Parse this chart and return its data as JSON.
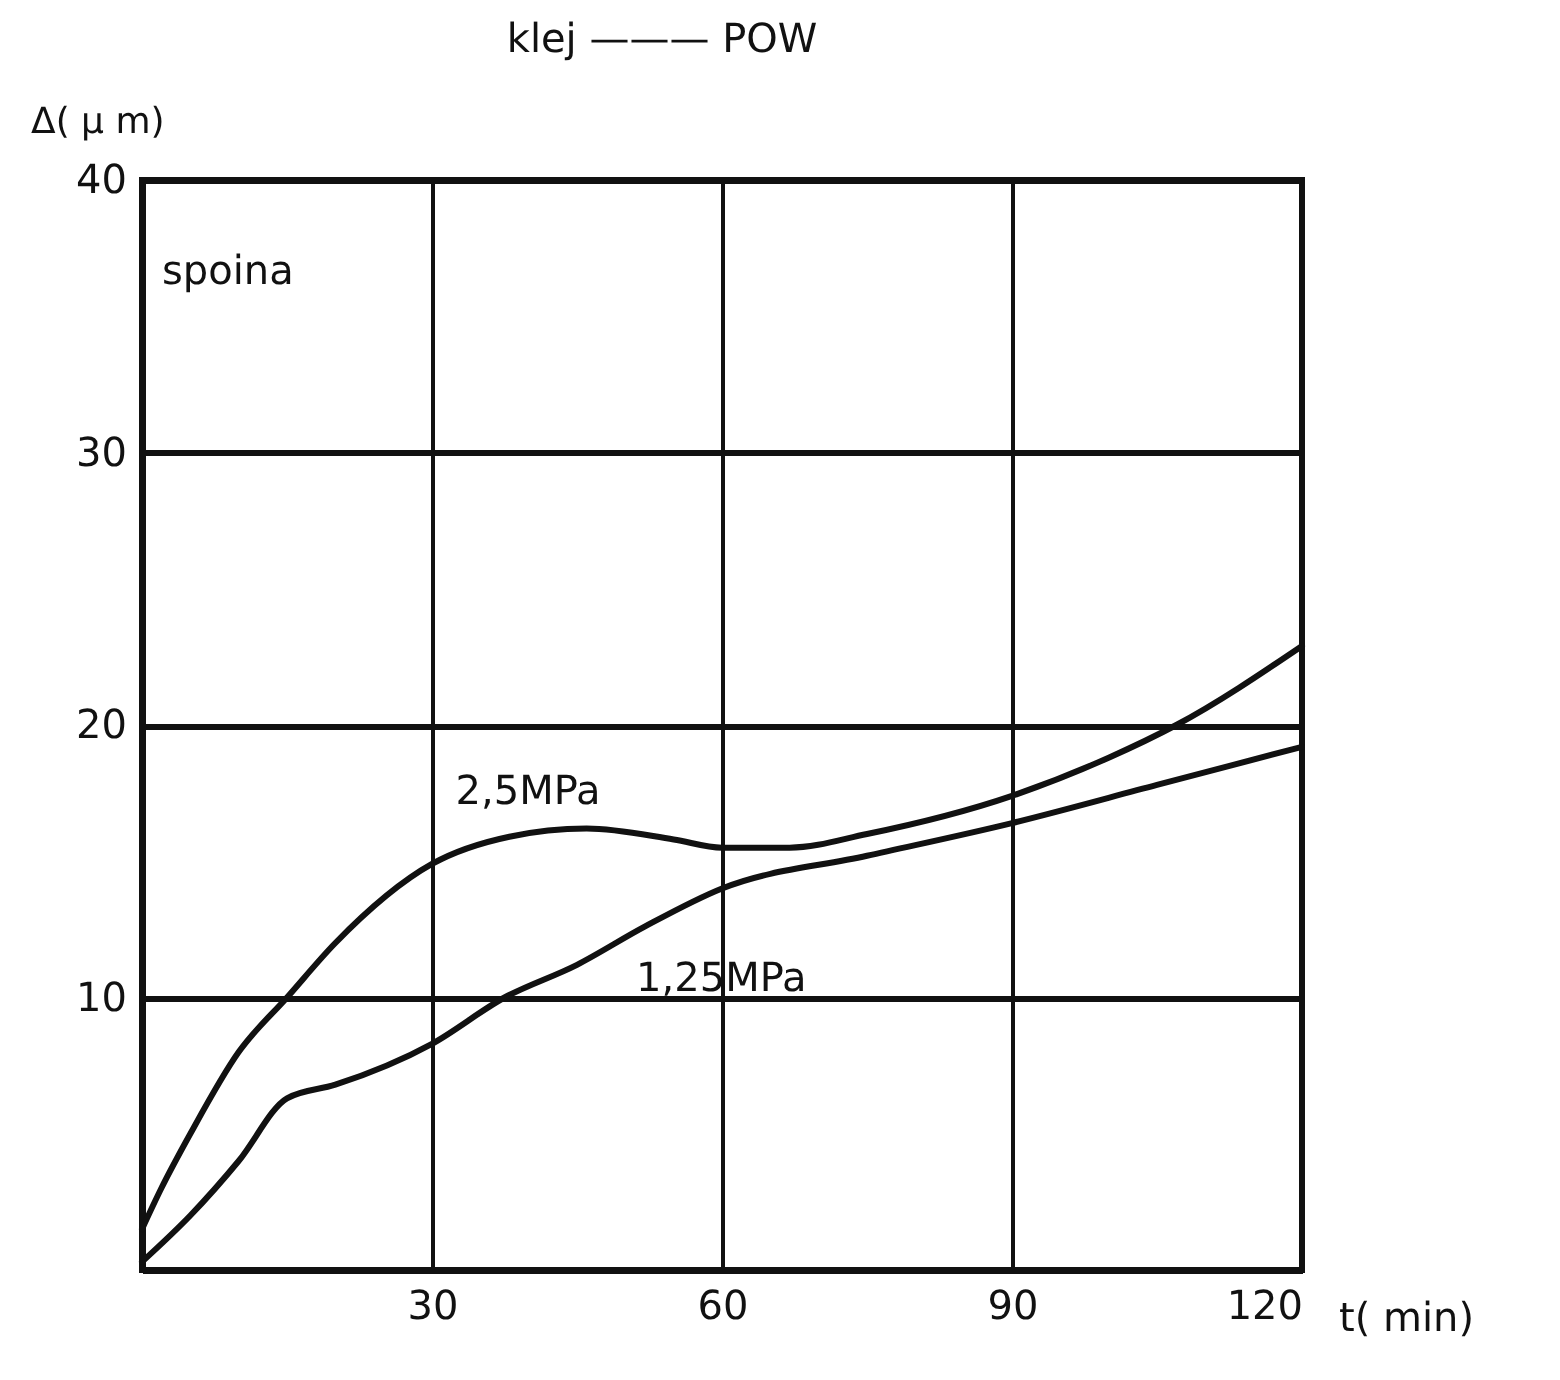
{
  "chart_data": {
    "type": "line",
    "title": "klej ——— POW",
    "xlabel": "t( min)",
    "ylabel": "Δ( μ m)",
    "annotations": [
      "spoina",
      {
        "text": "2,5MPa",
        "x": 30,
        "y": 14.9
      },
      {
        "text": "1,25MPa",
        "x": 50,
        "y": 12.3
      }
    ],
    "series": [
      {
        "color": "#111111",
        "x": [
          0,
          2,
          5,
          10,
          15,
          20,
          30,
          38,
          46,
          55,
          60,
          67,
          75,
          90,
          100,
          107,
          120
        ],
        "values": [
          1.5,
          3,
          5,
          8,
          10,
          12,
          14.9,
          15.9,
          16.2,
          15.8,
          15.5,
          15.5,
          16.0,
          17.4,
          18.8,
          20,
          22.9
        ]
      },
      {
        "color": "#111111",
        "x": [
          0,
          5,
          10,
          15,
          20,
          30,
          37.5,
          45,
          52,
          60,
          75,
          90,
          105,
          120
        ],
        "values": [
          0.3,
          2,
          4,
          6.3,
          6.8,
          8.3,
          10,
          11.2,
          12.6,
          14,
          15.2,
          16.4,
          17.8,
          19.2
        ]
      }
    ],
    "xlim": [
      0,
      120
    ],
    "ylim": [
      0,
      40
    ],
    "xticks": [
      30,
      60,
      90,
      120
    ],
    "yticks": [
      10,
      20,
      30,
      40
    ],
    "grid": true,
    "line_style": "solid",
    "marker": "none"
  }
}
